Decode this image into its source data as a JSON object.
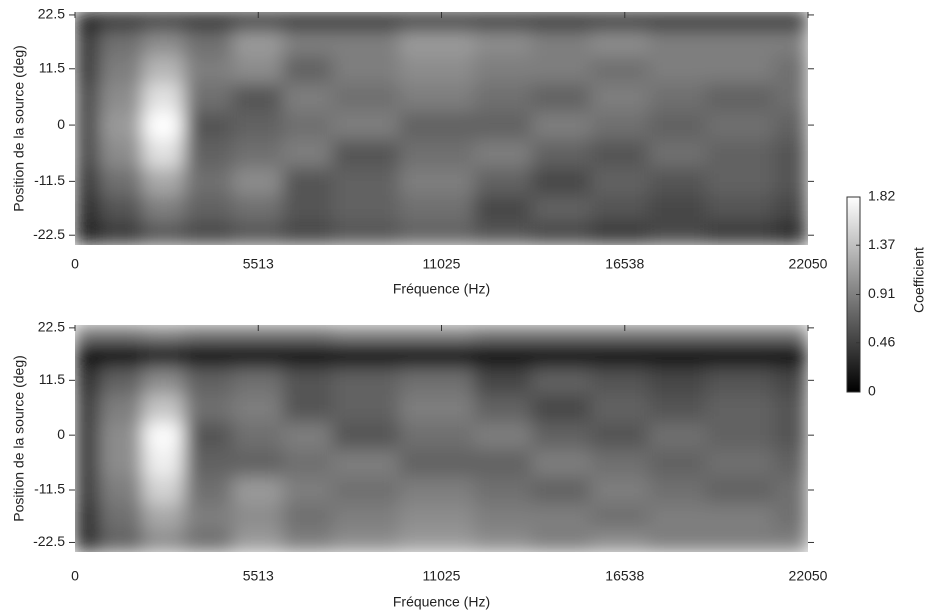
{
  "chart_data": [
    {
      "type": "heatmap",
      "xlabel": "Fréquence (Hz)",
      "ylabel": "Position de la source (deg)",
      "xlim": [
        0,
        22050
      ],
      "ylim": [
        -24.5,
        23.1
      ],
      "xticks": [
        0,
        5513,
        11025,
        16538,
        22050
      ],
      "yticks": [
        -22.5,
        -11.5,
        0,
        11.5,
        22.5
      ],
      "x": [
        0,
        1500,
        2600,
        4000,
        5513,
        7000,
        8500,
        11025,
        13000,
        14500,
        16538,
        18000,
        20000,
        22050
      ],
      "y": [
        -22.5,
        -17,
        -11.5,
        -5.75,
        0,
        5.75,
        11.5,
        17,
        22.5
      ],
      "z": [
        [
          0.2,
          0.4,
          0.6,
          0.5,
          0.6,
          0.5,
          0.6,
          0.7,
          0.6,
          0.5,
          0.4,
          0.5,
          0.4,
          0.3
        ],
        [
          0.3,
          0.6,
          0.9,
          0.7,
          0.8,
          0.6,
          0.7,
          0.8,
          0.5,
          0.7,
          0.6,
          0.5,
          0.6,
          0.5
        ],
        [
          0.4,
          0.8,
          1.2,
          0.8,
          1.0,
          0.6,
          0.7,
          0.9,
          0.7,
          0.5,
          0.7,
          0.6,
          0.7,
          0.6
        ],
        [
          0.5,
          1.0,
          1.6,
          0.7,
          0.8,
          0.9,
          0.6,
          0.8,
          0.9,
          0.7,
          0.6,
          0.8,
          0.7,
          0.6
        ],
        [
          0.5,
          1.1,
          1.82,
          0.6,
          0.7,
          0.8,
          0.9,
          0.7,
          0.7,
          0.9,
          0.8,
          0.7,
          0.8,
          0.7
        ],
        [
          0.5,
          1.0,
          1.6,
          0.8,
          0.6,
          0.9,
          0.8,
          0.9,
          0.8,
          0.7,
          0.9,
          0.8,
          0.7,
          0.8
        ],
        [
          0.4,
          0.9,
          1.3,
          0.9,
          1.0,
          0.7,
          0.9,
          1.0,
          0.9,
          0.9,
          0.8,
          0.9,
          0.9,
          0.8
        ],
        [
          0.4,
          0.8,
          1.0,
          0.8,
          1.1,
          0.9,
          0.9,
          1.1,
          1.0,
          0.9,
          1.0,
          0.9,
          0.9,
          0.9
        ],
        [
          0.1,
          0.1,
          0.1,
          0.1,
          0.1,
          0.1,
          0.1,
          0.1,
          0.1,
          0.1,
          0.1,
          0.1,
          0.1,
          0.1
        ]
      ]
    },
    {
      "type": "heatmap",
      "xlabel": "Fréquence (Hz)",
      "ylabel": "Position de la source (deg)",
      "xlim": [
        0,
        22050
      ],
      "ylim": [
        -24.5,
        23.1
      ],
      "xticks": [
        0,
        5513,
        11025,
        16538,
        22050
      ],
      "yticks": [
        -22.5,
        -11.5,
        0,
        11.5,
        22.5
      ],
      "x": [
        0,
        1500,
        2600,
        4000,
        5513,
        7000,
        8500,
        11025,
        13000,
        14500,
        16538,
        18000,
        20000,
        22050
      ],
      "y": [
        -22.5,
        -17,
        -11.5,
        -5.75,
        0,
        5.75,
        11.5,
        17,
        22.5
      ],
      "z": [
        [
          0.3,
          0.7,
          1.0,
          0.8,
          1.1,
          0.9,
          1.0,
          1.1,
          1.0,
          0.9,
          1.0,
          0.9,
          0.9,
          0.9
        ],
        [
          0.3,
          0.8,
          1.2,
          0.9,
          1.0,
          0.8,
          0.9,
          1.0,
          0.9,
          0.9,
          0.8,
          0.9,
          0.9,
          0.8
        ],
        [
          0.4,
          0.9,
          1.5,
          0.8,
          1.1,
          0.9,
          0.8,
          0.9,
          0.8,
          0.7,
          0.9,
          0.8,
          0.7,
          0.8
        ],
        [
          0.4,
          1.0,
          1.7,
          0.7,
          0.7,
          0.8,
          0.9,
          0.7,
          0.7,
          0.9,
          0.8,
          0.7,
          0.8,
          0.7
        ],
        [
          0.4,
          1.0,
          1.8,
          0.6,
          0.8,
          0.9,
          0.6,
          0.8,
          0.9,
          0.7,
          0.6,
          0.8,
          0.7,
          0.6
        ],
        [
          0.4,
          0.9,
          1.4,
          0.8,
          0.9,
          0.6,
          0.7,
          0.9,
          0.7,
          0.5,
          0.7,
          0.6,
          0.7,
          0.6
        ],
        [
          0.3,
          0.7,
          1.0,
          0.7,
          0.8,
          0.6,
          0.7,
          0.8,
          0.5,
          0.7,
          0.6,
          0.5,
          0.6,
          0.5
        ],
        [
          0.1,
          0.1,
          0.2,
          0.1,
          0.1,
          0.1,
          0.1,
          0.1,
          0.1,
          0.1,
          0.1,
          0.1,
          0.1,
          0.1
        ],
        [
          0.9,
          0.9,
          1.0,
          0.9,
          0.9,
          0.9,
          1.0,
          1.0,
          0.9,
          0.9,
          0.9,
          0.9,
          0.9,
          0.9
        ]
      ]
    }
  ],
  "colorbar": {
    "label": "Coefficient",
    "lim": [
      0,
      1.82
    ],
    "ticks": [
      0,
      0.46,
      0.91,
      1.37,
      1.82
    ]
  }
}
